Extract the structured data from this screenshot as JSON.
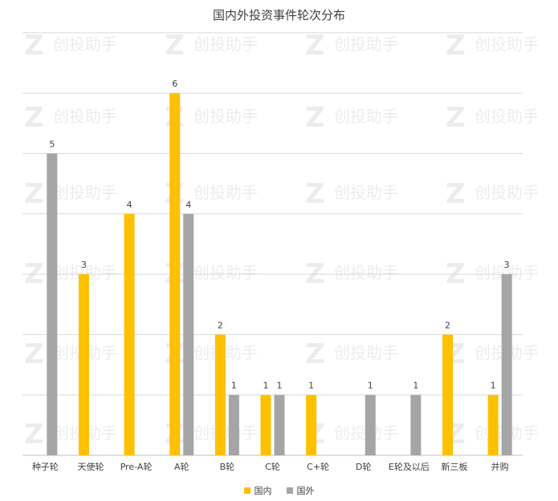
{
  "chart_data": {
    "type": "bar",
    "title": "国内外投资事件轮次分布",
    "categories": [
      "种子轮",
      "天使轮",
      "Pre-A轮",
      "A轮",
      "B轮",
      "C轮",
      "C+轮",
      "D轮",
      "E轮及以后",
      "新三板",
      "并购"
    ],
    "series": [
      {
        "name": "国内",
        "color": "#FFC000",
        "values": [
          0,
          3,
          4,
          6,
          2,
          1,
          1,
          0,
          0,
          2,
          1
        ]
      },
      {
        "name": "国外",
        "color": "#A5A5A5",
        "values": [
          5,
          0,
          0,
          4,
          1,
          1,
          0,
          1,
          1,
          0,
          3
        ]
      }
    ],
    "ylim": [
      0,
      7
    ],
    "grid": true,
    "legend_position": "bottom",
    "xlabel": "",
    "ylabel": ""
  },
  "watermark": "创投助手"
}
